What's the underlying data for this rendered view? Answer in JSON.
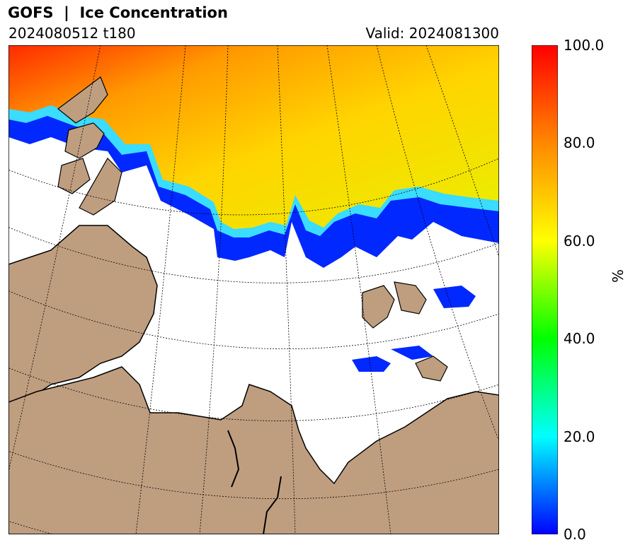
{
  "header": {
    "title": "GOFS  |  Ice Concentration",
    "init_forecast": "2024080512 t180",
    "valid": "Valid: 2024081300"
  },
  "colorbar": {
    "label": "%",
    "min": 0.0,
    "max": 100.0,
    "ticks": [
      "0.0",
      "20.0",
      "40.0",
      "60.0",
      "80.0",
      "100.0"
    ],
    "colors": [
      "#0000ff",
      "#00ffff",
      "#00ff00",
      "#ffff00",
      "#ff8800",
      "#ff0000"
    ]
  },
  "map": {
    "land_color": "#bf9e80",
    "ocean_color": "#ffffff",
    "gridlines": "dotted"
  }
}
